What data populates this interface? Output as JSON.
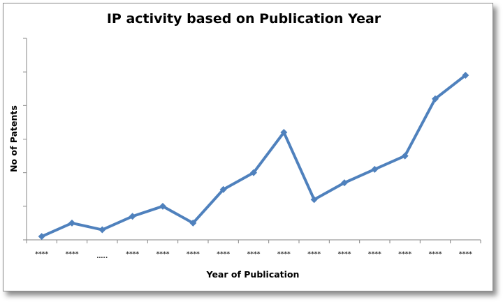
{
  "chart_data": {
    "type": "line",
    "title": "IP activity based on Publication Year",
    "xlabel": "Year of Publication",
    "ylabel": "No of Patents",
    "categories": [
      "****",
      "****",
      "…..",
      "****",
      "****",
      "****",
      "****",
      "****",
      "****",
      "****",
      "****",
      "****",
      "****",
      "****",
      "****"
    ],
    "values": [
      0.1,
      0.5,
      0.3,
      0.7,
      1.0,
      0.5,
      1.5,
      2.0,
      3.2,
      1.2,
      1.7,
      2.1,
      2.5,
      4.2,
      4.9
    ],
    "ylim": [
      0,
      6
    ],
    "y_tick_count": 7,
    "y_tick_labels_shown": false,
    "grid": false,
    "legend": "none",
    "marker": "diamond",
    "colors": {
      "line": "#4f81bd",
      "axis": "#868686"
    }
  }
}
